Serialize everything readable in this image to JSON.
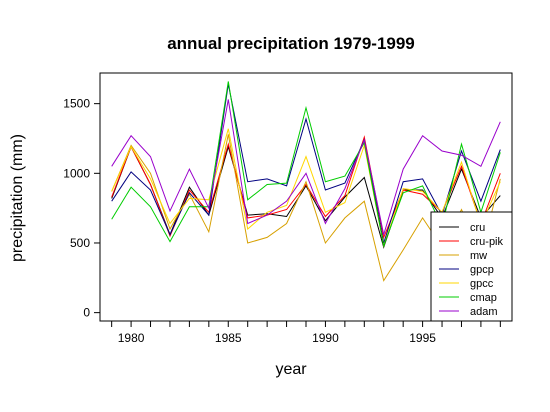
{
  "chart_data": {
    "type": "line",
    "title": "annual precipitation 1979-1999",
    "xlabel": "year",
    "ylabel": "precipitation (mm)",
    "xlim": [
      1978.4,
      1999.6
    ],
    "ylim": [
      -60,
      1720
    ],
    "xticks": [
      1980,
      1985,
      1990,
      1995
    ],
    "yticks": [
      0,
      500,
      1000,
      1500
    ],
    "legend_position": "bottom-right",
    "grid": false,
    "x": [
      1979,
      1980,
      1981,
      1982,
      1983,
      1984,
      1985,
      1986,
      1987,
      1988,
      1989,
      1990,
      1991,
      1992,
      1993,
      1994,
      1995,
      1996,
      1997,
      1998,
      1999
    ],
    "series": [
      {
        "name": "cru",
        "color": "#000000",
        "values": [
          820,
          1190,
          920,
          560,
          900,
          700,
          1190,
          700,
          710,
          690,
          910,
          660,
          830,
          970,
          470,
          880,
          880,
          680,
          1030,
          680,
          840
        ]
      },
      {
        "name": "cru-pik",
        "color": "#ff0000",
        "values": [
          830,
          1190,
          920,
          550,
          880,
          720,
          1210,
          680,
          700,
          740,
          920,
          690,
          840,
          1260,
          540,
          880,
          850,
          720,
          1050,
          640,
          1000
        ]
      },
      {
        "name": "mw",
        "color": "#d7a000",
        "values": [
          870,
          1200,
          1000,
          600,
          850,
          580,
          1280,
          500,
          540,
          640,
          940,
          500,
          680,
          800,
          230,
          450,
          680,
          470,
          740,
          420,
          960
        ]
      },
      {
        "name": "gpcp",
        "color": "#000080",
        "values": [
          800,
          1010,
          880,
          560,
          860,
          700,
          1640,
          940,
          960,
          910,
          1390,
          880,
          930,
          1240,
          500,
          940,
          960,
          700,
          1160,
          800,
          1170
        ]
      },
      {
        "name": "gpcc",
        "color": "#ffd700",
        "values": [
          870,
          1190,
          960,
          640,
          820,
          810,
          1320,
          600,
          720,
          770,
          1120,
          720,
          790,
          1200,
          480,
          890,
          870,
          720,
          1080,
          630,
          940
        ]
      },
      {
        "name": "cmap",
        "color": "#00cc00",
        "values": [
          670,
          900,
          760,
          510,
          760,
          760,
          1660,
          810,
          920,
          930,
          1470,
          940,
          980,
          1220,
          480,
          860,
          910,
          620,
          1210,
          720,
          1150
        ]
      },
      {
        "name": "adam",
        "color": "#9900cc",
        "values": [
          1050,
          1270,
          1120,
          730,
          1030,
          750,
          1530,
          640,
          700,
          800,
          1000,
          640,
          890,
          1240,
          560,
          1030,
          1270,
          1160,
          1130,
          1050,
          1370
        ]
      }
    ]
  }
}
